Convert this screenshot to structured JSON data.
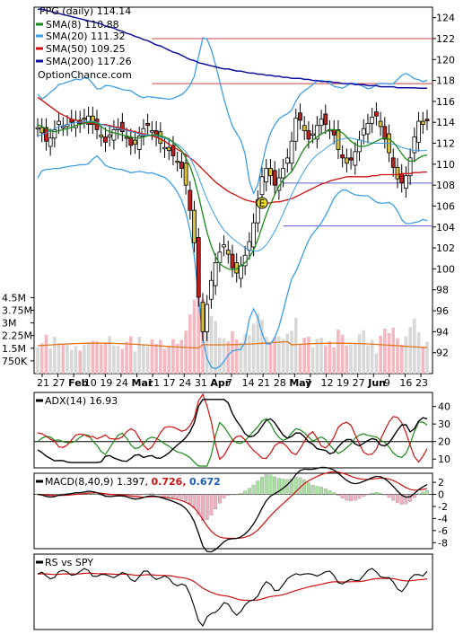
{
  "chart_data": {
    "type": "line",
    "title": "PPG (daily) 114.14",
    "watermark": "OptionChance.com",
    "legend": [
      {
        "label": "SMA(8) 110.88",
        "color": "#1a8a1a"
      },
      {
        "label": "SMA(20) 111.32",
        "color": "#3a9ee8"
      },
      {
        "label": "SMA(50) 109.25",
        "color": "#d01010"
      },
      {
        "label": "SMA(200) 117.26",
        "color": "#1010a0"
      }
    ],
    "price_axis": [
      124,
      122,
      120,
      118,
      116,
      114,
      112,
      110,
      108,
      106,
      104,
      102,
      100,
      98,
      96,
      94,
      92
    ],
    "price_range": [
      90,
      125
    ],
    "volume_axis": [
      "4.5M",
      "3.75M",
      "3M",
      "2.25M",
      "1.5M",
      "750K"
    ],
    "volume_range": [
      0,
      5000000
    ],
    "x_ticks": [
      {
        "label": "21",
        "bold": false
      },
      {
        "label": "27",
        "bold": false
      },
      {
        "label": "Feb",
        "bold": true
      },
      {
        "label": "10",
        "bold": false
      },
      {
        "label": "19",
        "bold": false
      },
      {
        "label": "24",
        "bold": false
      },
      {
        "label": "Mar",
        "bold": true
      },
      {
        "label": "11",
        "bold": false
      },
      {
        "label": "17",
        "bold": false
      },
      {
        "label": "24",
        "bold": false
      },
      {
        "label": "31",
        "bold": false
      },
      {
        "label": "Apr",
        "bold": true
      },
      {
        "label": "7",
        "bold": false
      },
      {
        "label": "14",
        "bold": false
      },
      {
        "label": "21",
        "bold": false
      },
      {
        "label": "28",
        "bold": false
      },
      {
        "label": "May",
        "bold": true
      },
      {
        "label": "7",
        "bold": false
      },
      {
        "label": "12",
        "bold": false
      },
      {
        "label": "19",
        "bold": false
      },
      {
        "label": "27",
        "bold": false
      },
      {
        "label": "Jun",
        "bold": true
      },
      {
        "label": "9",
        "bold": false
      },
      {
        "label": "16",
        "bold": false
      },
      {
        "label": "23",
        "bold": false
      }
    ],
    "event_marker": "E",
    "reference_levels": [
      122,
      117.7,
      108.2,
      104.1
    ],
    "close": [
      113.5,
      113,
      112.2,
      112.5,
      113.3,
      114.1,
      113.6,
      113.8,
      114,
      114.2,
      113.9,
      114.3,
      114.6,
      113.8,
      113.3,
      112.6,
      112.1,
      112.8,
      113.3,
      113.5,
      113.1,
      112.5,
      111.8,
      111.9,
      112.7,
      113.4,
      113.7,
      113.2,
      112.6,
      112,
      111.6,
      111.3,
      110.8,
      110.2,
      109.6,
      108,
      105.6,
      102.5,
      97.3,
      94,
      96.6,
      98.9,
      100.6,
      101.6,
      102.3,
      101.4,
      100.1,
      99.6,
      100.3,
      101.3,
      102.6,
      104.4,
      106.6,
      108.8,
      109.6,
      108.9,
      108,
      108.7,
      109.6,
      110.6,
      112.2,
      114.4,
      114.2,
      113.2,
      112.4,
      112.9,
      113.7,
      114.3,
      113.8,
      113.3,
      112.8,
      111.4,
      110.6,
      110.1,
      110.4,
      111.2,
      112.3,
      113.4,
      113.9,
      114.5,
      114.6,
      113.6,
      112.4,
      111.1,
      109.7,
      108.6,
      108.2,
      108.9,
      110.6,
      112.6,
      114.1,
      113.8,
      114.14
    ],
    "sma8": [
      113.8,
      113.6,
      113.4,
      113.2,
      113.1,
      113.2,
      113.3,
      113.4,
      113.5,
      113.7,
      113.8,
      113.9,
      114,
      114,
      113.9,
      113.6,
      113.3,
      113.1,
      113,
      112.9,
      112.8,
      112.7,
      112.6,
      112.5,
      112.5,
      112.6,
      112.7,
      112.8,
      112.8,
      112.7,
      112.6,
      112.4,
      112.1,
      111.7,
      111.3,
      110.6,
      109.8,
      108.6,
      107,
      105.2,
      103.5,
      102.2,
      101.2,
      100.5,
      100.2,
      100,
      99.9,
      100,
      100.3,
      100.6,
      101.1,
      101.8,
      102.8,
      104,
      105.2,
      106.2,
      107.1,
      107.9,
      108.5,
      108.9,
      109.3,
      110,
      110.8,
      111.5,
      112,
      112.3,
      112.6,
      112.9,
      113.1,
      113.3,
      113.3,
      113.2,
      113,
      112.6,
      112.2,
      111.9,
      111.7,
      111.7,
      111.8,
      112,
      112.2,
      112.4,
      112.5,
      112.4,
      112.1,
      111.6,
      111,
      110.5,
      110.3,
      110.3,
      110.6,
      110.8,
      110.88
    ],
    "sma20": [
      112.7,
      112.8,
      113,
      113.2,
      113.4,
      113.6,
      113.7,
      113.8,
      113.9,
      114,
      114,
      114.1,
      114.1,
      114.1,
      114,
      113.8,
      113.7,
      113.6,
      113.5,
      113.4,
      113.3,
      113.2,
      113.1,
      113,
      112.9,
      112.8,
      112.8,
      112.8,
      112.7,
      112.6,
      112.5,
      112.3,
      112.1,
      111.9,
      111.6,
      111.2,
      110.6,
      109.8,
      108.8,
      107.7,
      106.7,
      105.8,
      105,
      104.3,
      103.7,
      103.3,
      102.9,
      102.6,
      102.3,
      102,
      101.8,
      101.7,
      101.7,
      101.9,
      102.3,
      102.9,
      103.6,
      104.4,
      105.3,
      106.2,
      107.1,
      107.9,
      108.7,
      109.4,
      110,
      110.5,
      110.9,
      111.2,
      111.5,
      111.8,
      112.1,
      112.3,
      112.4,
      112.5,
      112.5,
      112.4,
      112.3,
      112.2,
      112.1,
      112,
      112,
      112,
      112,
      112,
      111.9,
      111.8,
      111.6,
      111.5,
      111.4,
      111.3,
      111.3,
      111.3,
      111.32
    ],
    "sma50": [
      116.4,
      116.1,
      115.8,
      115.5,
      115.2,
      114.9,
      114.7,
      114.5,
      114.3,
      114.2,
      114.1,
      114,
      113.9,
      113.9,
      113.8,
      113.8,
      113.8,
      113.7,
      113.6,
      113.5,
      113.4,
      113.3,
      113.2,
      113.1,
      113,
      112.9,
      112.8,
      112.7,
      112.6,
      112.4,
      112.2,
      111.9,
      111.7,
      111.4,
      111.2,
      110.9,
      110.6,
      110.3,
      109.9,
      109.5,
      109.1,
      108.7,
      108.3,
      108,
      107.7,
      107.4,
      107.2,
      107,
      106.8,
      106.6,
      106.5,
      106.4,
      106.3,
      106.3,
      106.3,
      106.3,
      106.4,
      106.4,
      106.5,
      106.6,
      106.7,
      106.9,
      107.1,
      107.3,
      107.5,
      107.7,
      107.9,
      108.1,
      108.2,
      108.4,
      108.5,
      108.6,
      108.7,
      108.8,
      108.8,
      108.8,
      108.8,
      108.8,
      108.8,
      108.9,
      108.9,
      109,
      109,
      109,
      109,
      109,
      109.1,
      109.1,
      109.1,
      109.2,
      109.2,
      109.25,
      109.25
    ],
    "sma200": [
      124.8,
      124.8,
      124.7,
      124.6,
      124.5,
      124.4,
      124.3,
      124.2,
      124.1,
      124,
      123.9,
      123.8,
      123.7,
      123.6,
      123.5,
      123.4,
      123.2,
      123.1,
      123,
      122.8,
      122.7,
      122.5,
      122.4,
      122.2,
      122.1,
      121.9,
      121.8,
      121.6,
      121.4,
      121.3,
      121.1,
      120.9,
      120.7,
      120.6,
      120.4,
      120.2,
      120,
      119.9,
      119.7,
      119.6,
      119.5,
      119.4,
      119.3,
      119.2,
      119.1,
      119.1,
      119,
      118.9,
      118.9,
      118.8,
      118.7,
      118.7,
      118.6,
      118.6,
      118.5,
      118.5,
      118.4,
      118.4,
      118.3,
      118.3,
      118.2,
      118.2,
      118.2,
      118.1,
      118.1,
      118,
      118,
      117.9,
      117.9,
      117.9,
      117.8,
      117.8,
      117.7,
      117.7,
      117.7,
      117.6,
      117.6,
      117.6,
      117.5,
      117.5,
      117.5,
      117.4,
      117.4,
      117.4,
      117.4,
      117.3,
      117.3,
      117.3,
      117.3,
      117.3,
      117.26,
      117.26,
      117.26
    ],
    "volume_avg": 1.65,
    "adx": {
      "label": "ADX(14) 16.93",
      "axis": [
        40,
        30,
        20,
        10
      ],
      "range": [
        5,
        48
      ],
      "threshold": 20,
      "adx_last": 16.93
    },
    "macd": {
      "label": "MACD(8,40,9) 1.397,",
      "signal_label": "0.726,",
      "hist_label": "0.672",
      "axis": [
        2,
        0,
        -2,
        -4,
        -6,
        -8
      ],
      "range": [
        -9,
        3.5
      ]
    },
    "rs": {
      "label": "RS vs SPY"
    }
  }
}
